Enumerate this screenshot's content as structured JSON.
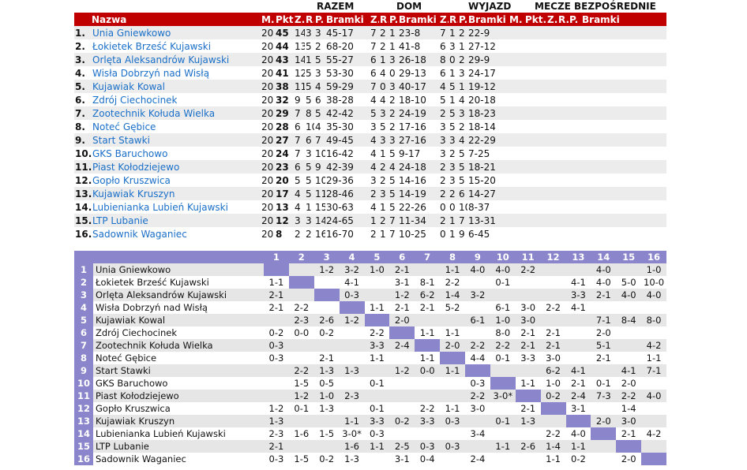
{
  "groups": {
    "razem": "RAZEM",
    "dom": "DOM",
    "wyjazd": "WYJAZD",
    "mecze": "MECZE BEZPOŚREDNIE"
  },
  "standings_header": [
    "Nazwa",
    "M.",
    "Pkt.",
    "Z.",
    "R.",
    "P.",
    "Bramki",
    "Z.",
    "R.",
    "P.",
    "Bramki",
    "Z.",
    "R.",
    "P.",
    "Bramki",
    "M.",
    "Pkt.",
    "Z.",
    "R.",
    "P.",
    "Bramki"
  ],
  "standings": [
    {
      "pos": "1.",
      "team": "Unia Gniewkowo",
      "m": "20",
      "pkt": "45",
      "z": "14",
      "r": "3",
      "p": "3",
      "br": "45-17",
      "hz": "7",
      "hr": "2",
      "hp": "1",
      "hbr": "23-8",
      "az": "7",
      "ar": "1",
      "ap": "2",
      "abr": "22-9"
    },
    {
      "pos": "2.",
      "team": "Łokietek Brześć Kujawski",
      "m": "20",
      "pkt": "44",
      "z": "13",
      "r": "5",
      "p": "2",
      "br": "68-20",
      "hz": "7",
      "hr": "2",
      "hp": "1",
      "hbr": "41-8",
      "az": "6",
      "ar": "3",
      "ap": "1",
      "abr": "27-12"
    },
    {
      "pos": "3.",
      "team": "Orlęta Aleksandrów Kujawski",
      "m": "20",
      "pkt": "43",
      "z": "14",
      "r": "1",
      "p": "5",
      "br": "55-27",
      "hz": "6",
      "hr": "1",
      "hp": "3",
      "hbr": "26-18",
      "az": "8",
      "ar": "0",
      "ap": "2",
      "abr": "29-9"
    },
    {
      "pos": "4.",
      "team": "Wisła Dobrzyń nad Wisłą",
      "m": "20",
      "pkt": "41",
      "z": "12",
      "r": "5",
      "p": "3",
      "br": "53-30",
      "hz": "6",
      "hr": "4",
      "hp": "0",
      "hbr": "29-13",
      "az": "6",
      "ar": "1",
      "ap": "3",
      "abr": "24-17"
    },
    {
      "pos": "5.",
      "team": "Kujawiak Kowal",
      "m": "20",
      "pkt": "38",
      "z": "11",
      "r": "5",
      "p": "4",
      "br": "59-29",
      "hz": "7",
      "hr": "0",
      "hp": "3",
      "hbr": "40-17",
      "az": "4",
      "ar": "5",
      "ap": "1",
      "abr": "19-12"
    },
    {
      "pos": "6.",
      "team": "Zdrój Ciechocinek",
      "m": "20",
      "pkt": "32",
      "z": "9",
      "r": "5",
      "p": "6",
      "br": "38-28",
      "hz": "4",
      "hr": "4",
      "hp": "2",
      "hbr": "18-10",
      "az": "5",
      "ar": "1",
      "ap": "4",
      "abr": "20-18"
    },
    {
      "pos": "7.",
      "team": "Zootechnik Kołuda Wielka",
      "m": "20",
      "pkt": "29",
      "z": "7",
      "r": "8",
      "p": "5",
      "br": "42-42",
      "hz": "5",
      "hr": "3",
      "hp": "2",
      "hbr": "24-19",
      "az": "2",
      "ar": "5",
      "ap": "3",
      "abr": "18-23"
    },
    {
      "pos": "8.",
      "team": "Noteć Gębice",
      "m": "20",
      "pkt": "28",
      "z": "6",
      "r": "10",
      "p": "4",
      "br": "35-30",
      "hz": "3",
      "hr": "5",
      "hp": "2",
      "hbr": "17-16",
      "az": "3",
      "ar": "5",
      "ap": "2",
      "abr": "18-14"
    },
    {
      "pos": "9.",
      "team": "Start Stawki",
      "m": "20",
      "pkt": "27",
      "z": "7",
      "r": "6",
      "p": "7",
      "br": "49-45",
      "hz": "4",
      "hr": "3",
      "hp": "3",
      "hbr": "27-16",
      "az": "3",
      "ar": "3",
      "ap": "4",
      "abr": "22-29"
    },
    {
      "pos": "10.",
      "team": "GKS Baruchowo",
      "m": "20",
      "pkt": "24",
      "z": "7",
      "r": "3",
      "p": "10",
      "br": "16-42",
      "hz": "4",
      "hr": "1",
      "hp": "5",
      "hbr": "9-17",
      "az": "3",
      "ar": "2",
      "ap": "5",
      "abr": "7-25"
    },
    {
      "pos": "11.",
      "team": "Piast Kołodziejewo",
      "m": "20",
      "pkt": "23",
      "z": "6",
      "r": "5",
      "p": "9",
      "br": "42-39",
      "hz": "4",
      "hr": "2",
      "hp": "4",
      "hbr": "24-18",
      "az": "2",
      "ar": "3",
      "ap": "5",
      "abr": "18-21"
    },
    {
      "pos": "12.",
      "team": "Gopło Kruszwica",
      "m": "20",
      "pkt": "20",
      "z": "5",
      "r": "5",
      "p": "10",
      "br": "29-36",
      "hz": "3",
      "hr": "2",
      "hp": "5",
      "hbr": "14-16",
      "az": "2",
      "ar": "3",
      "ap": "5",
      "abr": "15-20"
    },
    {
      "pos": "13.",
      "team": "Kujawiak Kruszyn",
      "m": "20",
      "pkt": "17",
      "z": "4",
      "r": "5",
      "p": "11",
      "br": "28-46",
      "hz": "2",
      "hr": "3",
      "hp": "5",
      "hbr": "14-19",
      "az": "2",
      "ar": "2",
      "ap": "6",
      "abr": "14-27"
    },
    {
      "pos": "14.",
      "team": "Lubienianka Lubień Kujawski",
      "m": "20",
      "pkt": "13",
      "z": "4",
      "r": "1",
      "p": "15",
      "br": "30-63",
      "hz": "4",
      "hr": "1",
      "hp": "5",
      "hbr": "22-26",
      "az": "0",
      "ar": "0",
      "ap": "10",
      "abr": "8-37"
    },
    {
      "pos": "15.",
      "team": "LTP Lubanie",
      "m": "20",
      "pkt": "12",
      "z": "3",
      "r": "3",
      "p": "14",
      "br": "24-65",
      "hz": "1",
      "hr": "2",
      "hp": "7",
      "hbr": "11-34",
      "az": "2",
      "ar": "1",
      "ap": "7",
      "abr": "13-31"
    },
    {
      "pos": "16.",
      "team": "Sadownik Waganiec",
      "m": "20",
      "pkt": "8",
      "z": "2",
      "r": "2",
      "p": "16",
      "br": "16-70",
      "hz": "2",
      "hr": "1",
      "hp": "7",
      "hbr": "10-25",
      "az": "0",
      "ar": "1",
      "ap": "9",
      "abr": "6-45"
    }
  ],
  "cross_cols": [
    "1",
    "2",
    "3",
    "4",
    "5",
    "6",
    "7",
    "8",
    "9",
    "10",
    "11",
    "12",
    "13",
    "14",
    "15",
    "16"
  ],
  "cross": [
    {
      "n": "1",
      "team": "Unia Gniewkowo",
      "s": [
        "",
        "",
        "1-2",
        "3-2",
        "1-0",
        "2-1",
        "",
        "1-1",
        "4-0",
        "4-0",
        "2-2",
        "",
        "",
        "4-0",
        "",
        "1-0"
      ]
    },
    {
      "n": "2",
      "team": "Łokietek Brześć Kujawski",
      "s": [
        "1-1",
        "",
        "",
        "4-1",
        "",
        "3-1",
        "8-1",
        "2-2",
        "",
        "0-1",
        "",
        "",
        "4-1",
        "4-0",
        "5-0",
        "10-0"
      ]
    },
    {
      "n": "3",
      "team": "Orlęta Aleksandrów Kujawski",
      "s": [
        "2-1",
        "",
        "",
        "0-3",
        "",
        "1-2",
        "6-2",
        "1-4",
        "3-2",
        "",
        "",
        "",
        "3-3",
        "2-1",
        "4-0",
        "4-0"
      ]
    },
    {
      "n": "4",
      "team": "Wisła Dobrzyń nad Wisłą",
      "s": [
        "2-1",
        "2-2",
        "",
        "",
        "1-1",
        "2-1",
        "2-1",
        "5-2",
        "",
        "6-1",
        "3-0",
        "2-2",
        "4-1",
        "",
        "",
        ""
      ]
    },
    {
      "n": "5",
      "team": "Kujawiak Kowal",
      "s": [
        "",
        "2-3",
        "2-6",
        "1-2",
        "",
        "2-0",
        "",
        "",
        "6-1",
        "1-0",
        "3-0",
        "",
        "",
        "7-1",
        "8-4",
        "8-0"
      ]
    },
    {
      "n": "6",
      "team": "Zdrój Ciechocinek",
      "s": [
        "0-2",
        "0-0",
        "0-2",
        "",
        "2-2",
        "",
        "1-1",
        "1-1",
        "",
        "8-0",
        "2-1",
        "2-1",
        "",
        "2-0",
        "",
        ""
      ]
    },
    {
      "n": "7",
      "team": "Zootechnik Kołuda Wielka",
      "s": [
        "0-3",
        "",
        "",
        "",
        "3-3",
        "2-4",
        "",
        "2-0",
        "2-2",
        "2-2",
        "2-1",
        "2-1",
        "",
        "5-1",
        "",
        "4-2"
      ]
    },
    {
      "n": "8",
      "team": "Noteć Gębice",
      "s": [
        "0-3",
        "",
        "2-1",
        "",
        "1-1",
        "",
        "1-1",
        "",
        "4-4",
        "0-1",
        "3-3",
        "3-0",
        "",
        "2-1",
        "",
        "1-1"
      ]
    },
    {
      "n": "9",
      "team": "Start Stawki",
      "s": [
        "",
        "2-2",
        "1-3",
        "1-3",
        "",
        "1-2",
        "0-0",
        "1-1",
        "",
        "",
        "",
        "6-2",
        "4-1",
        "",
        "4-1",
        "7-1"
      ]
    },
    {
      "n": "10",
      "team": "GKS Baruchowo",
      "s": [
        "",
        "1-5",
        "0-5",
        "",
        "0-1",
        "",
        "",
        "",
        "0-3",
        "",
        "1-1",
        "1-0",
        "2-1",
        "0-1",
        "2-0",
        ""
      ]
    },
    {
      "n": "11",
      "team": "Piast Kołodziejewo",
      "s": [
        "",
        "1-2",
        "1-0",
        "2-3",
        "",
        "",
        "",
        "",
        "2-2",
        "3-0*",
        "",
        "0-2",
        "2-4",
        "7-3",
        "2-2",
        "4-0"
      ]
    },
    {
      "n": "12",
      "team": "Gopło Kruszwica",
      "s": [
        "1-2",
        "0-1",
        "1-3",
        "",
        "0-1",
        "",
        "2-2",
        "1-1",
        "3-0",
        "",
        "2-1",
        "",
        "3-1",
        "",
        "1-4",
        ""
      ]
    },
    {
      "n": "13",
      "team": "Kujawiak Kruszyn",
      "s": [
        "1-3",
        "",
        "",
        "1-1",
        "3-3",
        "0-2",
        "3-3",
        "0-3",
        "",
        "0-1",
        "1-3",
        "",
        "",
        "2-0",
        "3-0",
        ""
      ]
    },
    {
      "n": "14",
      "team": "Lubienianka Lubień Kujawski",
      "s": [
        "2-3",
        "1-6",
        "1-5",
        "3-0*",
        "0-3",
        "",
        "",
        "",
        "3-4",
        "",
        "",
        "2-2",
        "4-0",
        "",
        "2-1",
        "4-2"
      ]
    },
    {
      "n": "15",
      "team": "LTP Lubanie",
      "s": [
        "2-1",
        "",
        "",
        "1-6",
        "1-1",
        "2-5",
        "0-3",
        "0-3",
        "",
        "1-1",
        "2-6",
        "1-4",
        "1-1",
        "",
        "",
        ""
      ]
    },
    {
      "n": "16",
      "team": "Sadownik Waganiec",
      "s": [
        "0-3",
        "1-5",
        "0-2",
        "1-3",
        "",
        "3-1",
        "0-4",
        "",
        "2-4",
        "",
        "",
        "1-1",
        "0-2",
        "",
        "2-0",
        ""
      ]
    }
  ]
}
